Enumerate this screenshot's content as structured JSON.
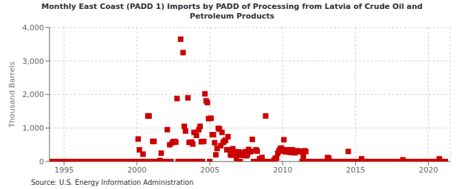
{
  "chart_data": {
    "type": "scatter",
    "title": "Monthly East Coast (PADD 1) Imports by PADD of Processing from Latvia of Crude Oil and\nPetroleum Products",
    "ylabel": "Thousand Barrels",
    "annotations": [
      "Source: U.S. Energy Information Administration"
    ],
    "color": "#cc0000",
    "marker": "square",
    "grid": true,
    "xlim": [
      1994.0,
      2021.5
    ],
    "xticks": [
      1995,
      2000,
      2005,
      2010,
      2015,
      2020
    ],
    "ylim": [
      0,
      4000
    ],
    "yticks": [
      0,
      {
        "value": 1000,
        "label": "1,000"
      },
      {
        "value": 2000,
        "label": "2,000"
      },
      {
        "value": 3000,
        "label": "3,000"
      },
      {
        "value": 4000,
        "label": "4,000"
      }
    ],
    "x": [
      1994.0,
      1994.083,
      1994.167,
      1994.25,
      1994.333,
      1994.417,
      1994.5,
      1994.583,
      1994.667,
      1994.75,
      1994.833,
      1994.917,
      1995.0,
      1995.083,
      1995.167,
      1995.25,
      1995.333,
      1995.417,
      1995.5,
      1995.583,
      1995.667,
      1995.75,
      1995.833,
      1995.917,
      1996.0,
      1996.083,
      1996.167,
      1996.25,
      1996.333,
      1996.417,
      1996.5,
      1996.583,
      1996.667,
      1996.75,
      1996.833,
      1996.917,
      1997.0,
      1997.083,
      1997.167,
      1997.25,
      1997.333,
      1997.417,
      1997.5,
      1997.583,
      1997.667,
      1997.75,
      1997.833,
      1997.917,
      1998.0,
      1998.083,
      1998.167,
      1998.25,
      1998.333,
      1998.417,
      1998.5,
      1998.583,
      1998.667,
      1998.75,
      1998.833,
      1998.917,
      1999.0,
      1999.083,
      1999.167,
      1999.25,
      1999.333,
      1999.417,
      1999.5,
      1999.583,
      1999.667,
      1999.75,
      1999.833,
      1999.917,
      2000.0,
      2000.083,
      2000.167,
      2000.25,
      2000.333,
      2000.417,
      2000.5,
      2000.583,
      2000.667,
      2000.75,
      2000.833,
      2000.917,
      2001.0,
      2001.083,
      2001.167,
      2001.25,
      2001.333,
      2001.417,
      2001.5,
      2001.583,
      2001.667,
      2001.75,
      2001.833,
      2001.917,
      2002.0,
      2002.083,
      2002.167,
      2002.25,
      2002.333,
      2002.417,
      2002.5,
      2002.583,
      2002.667,
      2002.75,
      2002.833,
      2002.917,
      2003.0,
      2003.083,
      2003.167,
      2003.25,
      2003.333,
      2003.417,
      2003.5,
      2003.583,
      2003.667,
      2003.75,
      2003.833,
      2003.917,
      2004.0,
      2004.083,
      2004.167,
      2004.25,
      2004.333,
      2004.417,
      2004.5,
      2004.583,
      2004.667,
      2004.75,
      2004.833,
      2004.917,
      2005.0,
      2005.083,
      2005.167,
      2005.25,
      2005.333,
      2005.417,
      2005.5,
      2005.583,
      2005.667,
      2005.75,
      2005.833,
      2005.917,
      2006.0,
      2006.083,
      2006.167,
      2006.25,
      2006.333,
      2006.417,
      2006.5,
      2006.583,
      2006.667,
      2006.75,
      2006.833,
      2006.917,
      2007.0,
      2007.083,
      2007.167,
      2007.25,
      2007.333,
      2007.417,
      2007.5,
      2007.583,
      2007.667,
      2007.75,
      2007.833,
      2007.917,
      2008.0,
      2008.083,
      2008.167,
      2008.25,
      2008.333,
      2008.417,
      2008.5,
      2008.583,
      2008.667,
      2008.75,
      2008.833,
      2008.917,
      2009.0,
      2009.083,
      2009.167,
      2009.25,
      2009.333,
      2009.417,
      2009.5,
      2009.583,
      2009.667,
      2009.75,
      2009.833,
      2009.917,
      2010.0,
      2010.083,
      2010.167,
      2010.25,
      2010.333,
      2010.417,
      2010.5,
      2010.583,
      2010.667,
      2010.75,
      2010.833,
      2010.917,
      2011.0,
      2011.083,
      2011.167,
      2011.25,
      2011.333,
      2011.417,
      2011.5,
      2011.583,
      2011.667,
      2011.75,
      2011.833,
      2011.917,
      2012.0,
      2012.083,
      2012.167,
      2012.25,
      2012.333,
      2012.417,
      2012.5,
      2012.583,
      2012.667,
      2012.75,
      2012.833,
      2012.917,
      2013.0,
      2013.083,
      2013.167,
      2013.25,
      2013.333,
      2013.417,
      2013.5,
      2013.583,
      2013.667,
      2013.75,
      2013.833,
      2013.917,
      2014.0,
      2014.083,
      2014.167,
      2014.25,
      2014.333,
      2014.417,
      2014.5,
      2014.583,
      2014.667,
      2014.75,
      2014.833,
      2014.917,
      2015.0,
      2015.083,
      2015.167,
      2015.25,
      2015.333,
      2015.417,
      2015.5,
      2015.583,
      2015.667,
      2015.75,
      2015.833,
      2015.917,
      2016.0,
      2016.083,
      2016.167,
      2016.25,
      2016.333,
      2016.417,
      2016.5,
      2016.583,
      2016.667,
      2016.75,
      2016.833,
      2016.917,
      2017.0,
      2017.083,
      2017.167,
      2017.25,
      2017.333,
      2017.417,
      2017.5,
      2017.583,
      2017.667,
      2017.75,
      2017.833,
      2017.917,
      2018.0,
      2018.083,
      2018.167,
      2018.25,
      2018.333,
      2018.417,
      2018.5,
      2018.583,
      2018.667,
      2018.75,
      2018.833,
      2018.917,
      2019.0,
      2019.083,
      2019.167,
      2019.25,
      2019.333,
      2019.417,
      2019.5,
      2019.583,
      2019.667,
      2019.75,
      2019.833,
      2019.917,
      2020.0,
      2020.083,
      2020.167,
      2020.25,
      2020.333,
      2020.417,
      2020.5,
      2020.583,
      2020.667,
      2020.75,
      2020.833,
      2020.917,
      2021.0,
      2021.083,
      2021.167
    ],
    "values": [
      0,
      0,
      0,
      0,
      0,
      0,
      0,
      0,
      0,
      0,
      0,
      0,
      0,
      0,
      0,
      0,
      0,
      0,
      0,
      0,
      0,
      0,
      0,
      0,
      0,
      0,
      0,
      0,
      0,
      0,
      0,
      0,
      0,
      0,
      0,
      0,
      0,
      0,
      0,
      0,
      0,
      0,
      0,
      0,
      0,
      0,
      0,
      0,
      0,
      0,
      0,
      0,
      0,
      0,
      0,
      0,
      0,
      0,
      0,
      0,
      0,
      0,
      0,
      0,
      0,
      0,
      0,
      0,
      0,
      0,
      0,
      0,
      0,
      670,
      350,
      0,
      0,
      220,
      0,
      0,
      0,
      1360,
      1360,
      0,
      0,
      600,
      600,
      0,
      0,
      0,
      0,
      30,
      250,
      0,
      0,
      0,
      0,
      950,
      0,
      500,
      0,
      560,
      590,
      600,
      580,
      1880,
      0,
      0,
      3650,
      0,
      3250,
      1050,
      910,
      0,
      1900,
      570,
      0,
      580,
      520,
      870,
      0,
      780,
      0,
      950,
      1050,
      590,
      0,
      600,
      2020,
      1810,
      1760,
      1280,
      0,
      1290,
      800,
      800,
      560,
      200,
      390,
      990,
      970,
      470,
      870,
      570,
      610,
      640,
      350,
      740,
      350,
      200,
      190,
      380,
      290,
      220,
      90,
      200,
      290,
      0,
      190,
      190,
      240,
      290,
      170,
      200,
      360,
      290,
      300,
      660,
      0,
      0,
      350,
      310,
      0,
      80,
      0,
      120,
      0,
      0,
      1360,
      0,
      0,
      0,
      0,
      0,
      0,
      50,
      100,
      100,
      250,
      320,
      390,
      400,
      310,
      650,
      290,
      350,
      300,
      280,
      350,
      270,
      350,
      280,
      260,
      310,
      320,
      290,
      310,
      290,
      0,
      160,
      320,
      300,
      0,
      0,
      0,
      0,
      0,
      0,
      0,
      0,
      0,
      0,
      0,
      0,
      0,
      0,
      0,
      0,
      0,
      120,
      100,
      0,
      0,
      0,
      0,
      0,
      0,
      0,
      0,
      0,
      0,
      0,
      0,
      0,
      0,
      0,
      300,
      0,
      0,
      0,
      0,
      0,
      0,
      0,
      0,
      0,
      0,
      80,
      0,
      0,
      0,
      0,
      0,
      0,
      0,
      0,
      0,
      0,
      0,
      0,
      0,
      0,
      0,
      0,
      0,
      0,
      0,
      0,
      0,
      0,
      0,
      0,
      0,
      0,
      0,
      0,
      0,
      0,
      0,
      0,
      0,
      50,
      0,
      0,
      0,
      0,
      0,
      0,
      0,
      0,
      0,
      0,
      0,
      0,
      0,
      0,
      0,
      0,
      0,
      0,
      0,
      0,
      0,
      0,
      0,
      0,
      0,
      0,
      0,
      0,
      0,
      80,
      0,
      0,
      0,
      0,
      0
    ]
  }
}
